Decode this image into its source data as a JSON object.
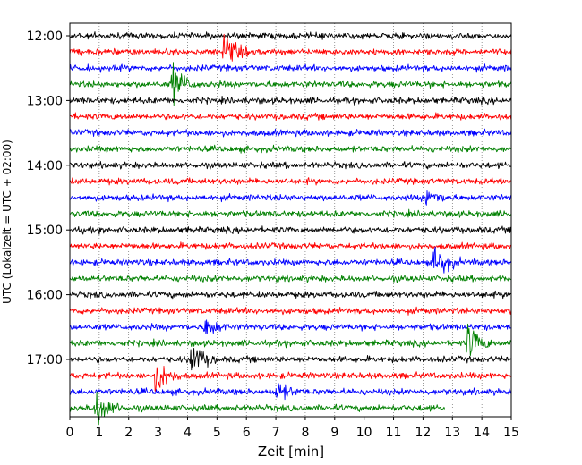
{
  "chart_data": {
    "type": "line",
    "subtype": "helicorder-seismogram",
    "title": "",
    "xlabel": "Zeit  [min]",
    "ylabel": "UTC (Lokalzeit = UTC + 02:00)",
    "xlim": [
      0,
      15
    ],
    "x_ticks": [
      "0",
      "1",
      "2",
      "3",
      "4",
      "5",
      "6",
      "7",
      "8",
      "9",
      "10",
      "11",
      "12",
      "13",
      "14",
      "15"
    ],
    "y_ticks": [
      "12:00",
      "13:00",
      "14:00",
      "15:00",
      "16:00",
      "17:00"
    ],
    "trace_start": "12:00",
    "trace_interval_min": 15,
    "trace_color_cycle": [
      "#000000",
      "#ff0000",
      "#0000ff",
      "#008000"
    ],
    "trace_count": 24,
    "last_trace_end_min": 12.75,
    "vertical_grid": true,
    "grid_style": "dotted",
    "events": [
      {
        "trace": 1,
        "time_min": 5.2,
        "amplitude": "large"
      },
      {
        "trace": 3,
        "time_min": 3.5,
        "amplitude": "large"
      },
      {
        "trace": 10,
        "time_min": 12.1,
        "amplitude": "medium"
      },
      {
        "trace": 14,
        "time_min": 12.4,
        "amplitude": "large"
      },
      {
        "trace": 18,
        "time_min": 4.6,
        "amplitude": "medium"
      },
      {
        "trace": 19,
        "time_min": 13.5,
        "amplitude": "large"
      },
      {
        "trace": 20,
        "time_min": 4.1,
        "amplitude": "large"
      },
      {
        "trace": 21,
        "time_min": 2.9,
        "amplitude": "large"
      },
      {
        "trace": 22,
        "time_min": 7.0,
        "amplitude": "medium"
      },
      {
        "trace": 23,
        "time_min": 0.9,
        "amplitude": "large"
      }
    ]
  }
}
